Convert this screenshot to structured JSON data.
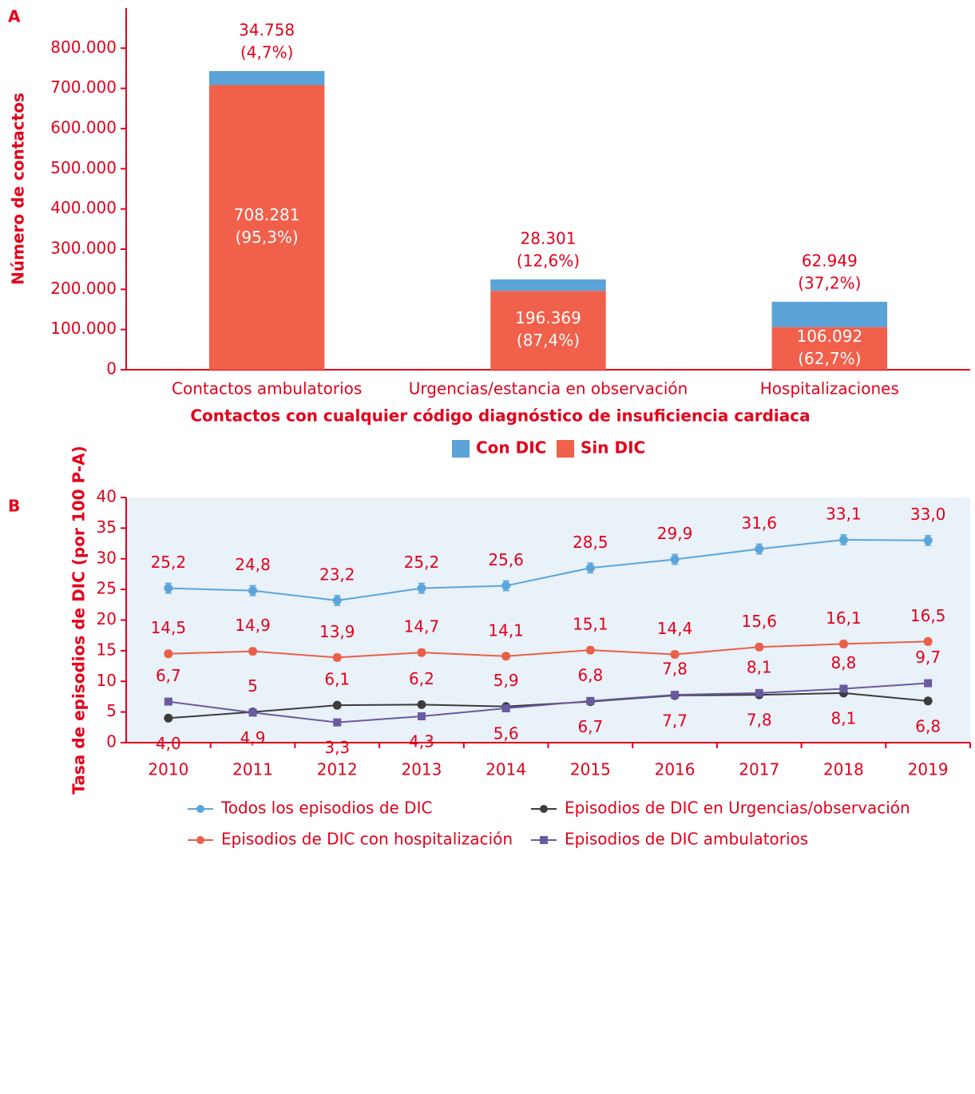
{
  "chart_data": [
    {
      "type": "stacked-bar",
      "panel_label": "A",
      "y_label": "Número de contactos",
      "x_label": "Contactos con cualquier código diagnóstico de insuficiencia cardiaca",
      "categories": [
        "Contactos ambulatorios",
        "Urgencias/estancia en observación",
        "Hospitalizaciones"
      ],
      "series": [
        {
          "name": "Sin DIC",
          "color": "#f0604b",
          "values": [
            708281,
            196369,
            106092
          ],
          "value_labels": [
            "708.281",
            "196.369",
            "106.092"
          ],
          "share_labels": [
            "(95,3%)",
            "(87,4%)",
            "(62,7%)"
          ]
        },
        {
          "name": "Con DIC",
          "color": "#5ba3d9",
          "values": [
            34758,
            28301,
            62949
          ],
          "value_labels": [
            "34.758",
            "28.301",
            "62.949"
          ],
          "share_labels": [
            "(4,7%)",
            "(12,6%)",
            "(37,2%)"
          ]
        }
      ],
      "ylim": [
        0,
        900000
      ],
      "yticks": [
        0,
        {
          "value": 100000,
          "label": "100.000"
        },
        {
          "value": 200000,
          "label": "200.000"
        },
        {
          "value": 300000,
          "label": "300.000"
        },
        {
          "value": 400000,
          "label": "400.000"
        },
        {
          "value": 500000,
          "label": "500.000"
        },
        {
          "value": 600000,
          "label": "600.000"
        },
        {
          "value": 700000,
          "label": "700.000"
        },
        {
          "value": 800000,
          "label": "800.000"
        }
      ],
      "grid": false
    },
    {
      "type": "line",
      "panel_label": "B",
      "y_label": "Tasa de episodios de DIC (por 100 P-A)",
      "categories": [
        "2010",
        "2011",
        "2012",
        "2013",
        "2014",
        "2015",
        "2016",
        "2017",
        "2018",
        "2019"
      ],
      "plot_background": "#e9f1f9",
      "series": [
        {
          "name": "Todos los episodios de DIC",
          "color": "#5aa5db",
          "marker": "circle",
          "values": [
            25.2,
            24.8,
            23.2,
            25.2,
            25.6,
            28.5,
            29.9,
            31.6,
            33.1,
            33.0
          ],
          "value_labels": [
            "25,2",
            "24,8",
            "23,2",
            "25,2",
            "25,6",
            "28,5",
            "29,9",
            "31,6",
            "33,1",
            "33,0"
          ],
          "errors": [
            0.8,
            0.8,
            0.8,
            0.8,
            0.8,
            0.8,
            0.8,
            0.8,
            0.8,
            0.8
          ]
        },
        {
          "name": "Episodios de DIC con hospitalización",
          "color": "#ea5f48",
          "marker": "circle",
          "values": [
            14.5,
            14.9,
            13.9,
            14.7,
            14.1,
            15.1,
            14.4,
            15.6,
            16.1,
            16.5
          ],
          "value_labels": [
            "14,5",
            "14,9",
            "13,9",
            "14,7",
            "14,1",
            "15,1",
            "14,4",
            "15,6",
            "16,1",
            "16,5"
          ],
          "errors": [
            0.5,
            0.5,
            0.5,
            0.5,
            0.5,
            0.5,
            0.5,
            0.5,
            0.5,
            0.5
          ]
        },
        {
          "name": "Episodios de DIC en Urgencias/observación",
          "color": "#3c3c3c",
          "marker": "circle",
          "values": [
            4.0,
            5,
            6.1,
            6.2,
            5.9,
            6.7,
            7.7,
            7.8,
            8.1,
            6.8
          ],
          "value_labels": [
            "4,0",
            "5",
            "6,1",
            "6,2",
            "5,9",
            "6,7",
            "7,7",
            "7,8",
            "8,1",
            "6,8"
          ],
          "errors": [
            0.3,
            0.3,
            0.3,
            0.3,
            0.3,
            0.3,
            0.3,
            0.3,
            0.3,
            0.3
          ]
        },
        {
          "name": "Episodios de DIC ambulatorios",
          "color": "#6a5aa0",
          "marker": "square",
          "values": [
            6.7,
            4.9,
            3.3,
            4.3,
            5.6,
            6.8,
            7.8,
            8.1,
            8.8,
            9.7
          ],
          "value_labels": [
            "6,7",
            "4,9",
            "3,3",
            "4,3",
            "5,6",
            "6,8",
            "7,8",
            "8,1",
            "8,8",
            "9,7"
          ],
          "errors": [
            0.3,
            0.3,
            0.3,
            0.3,
            0.3,
            0.3,
            0.3,
            0.3,
            0.3,
            0.3
          ]
        }
      ],
      "ylim": [
        0,
        40
      ],
      "yticks": [
        0,
        5,
        10,
        15,
        20,
        25,
        30,
        35,
        40
      ],
      "grid": false
    }
  ]
}
